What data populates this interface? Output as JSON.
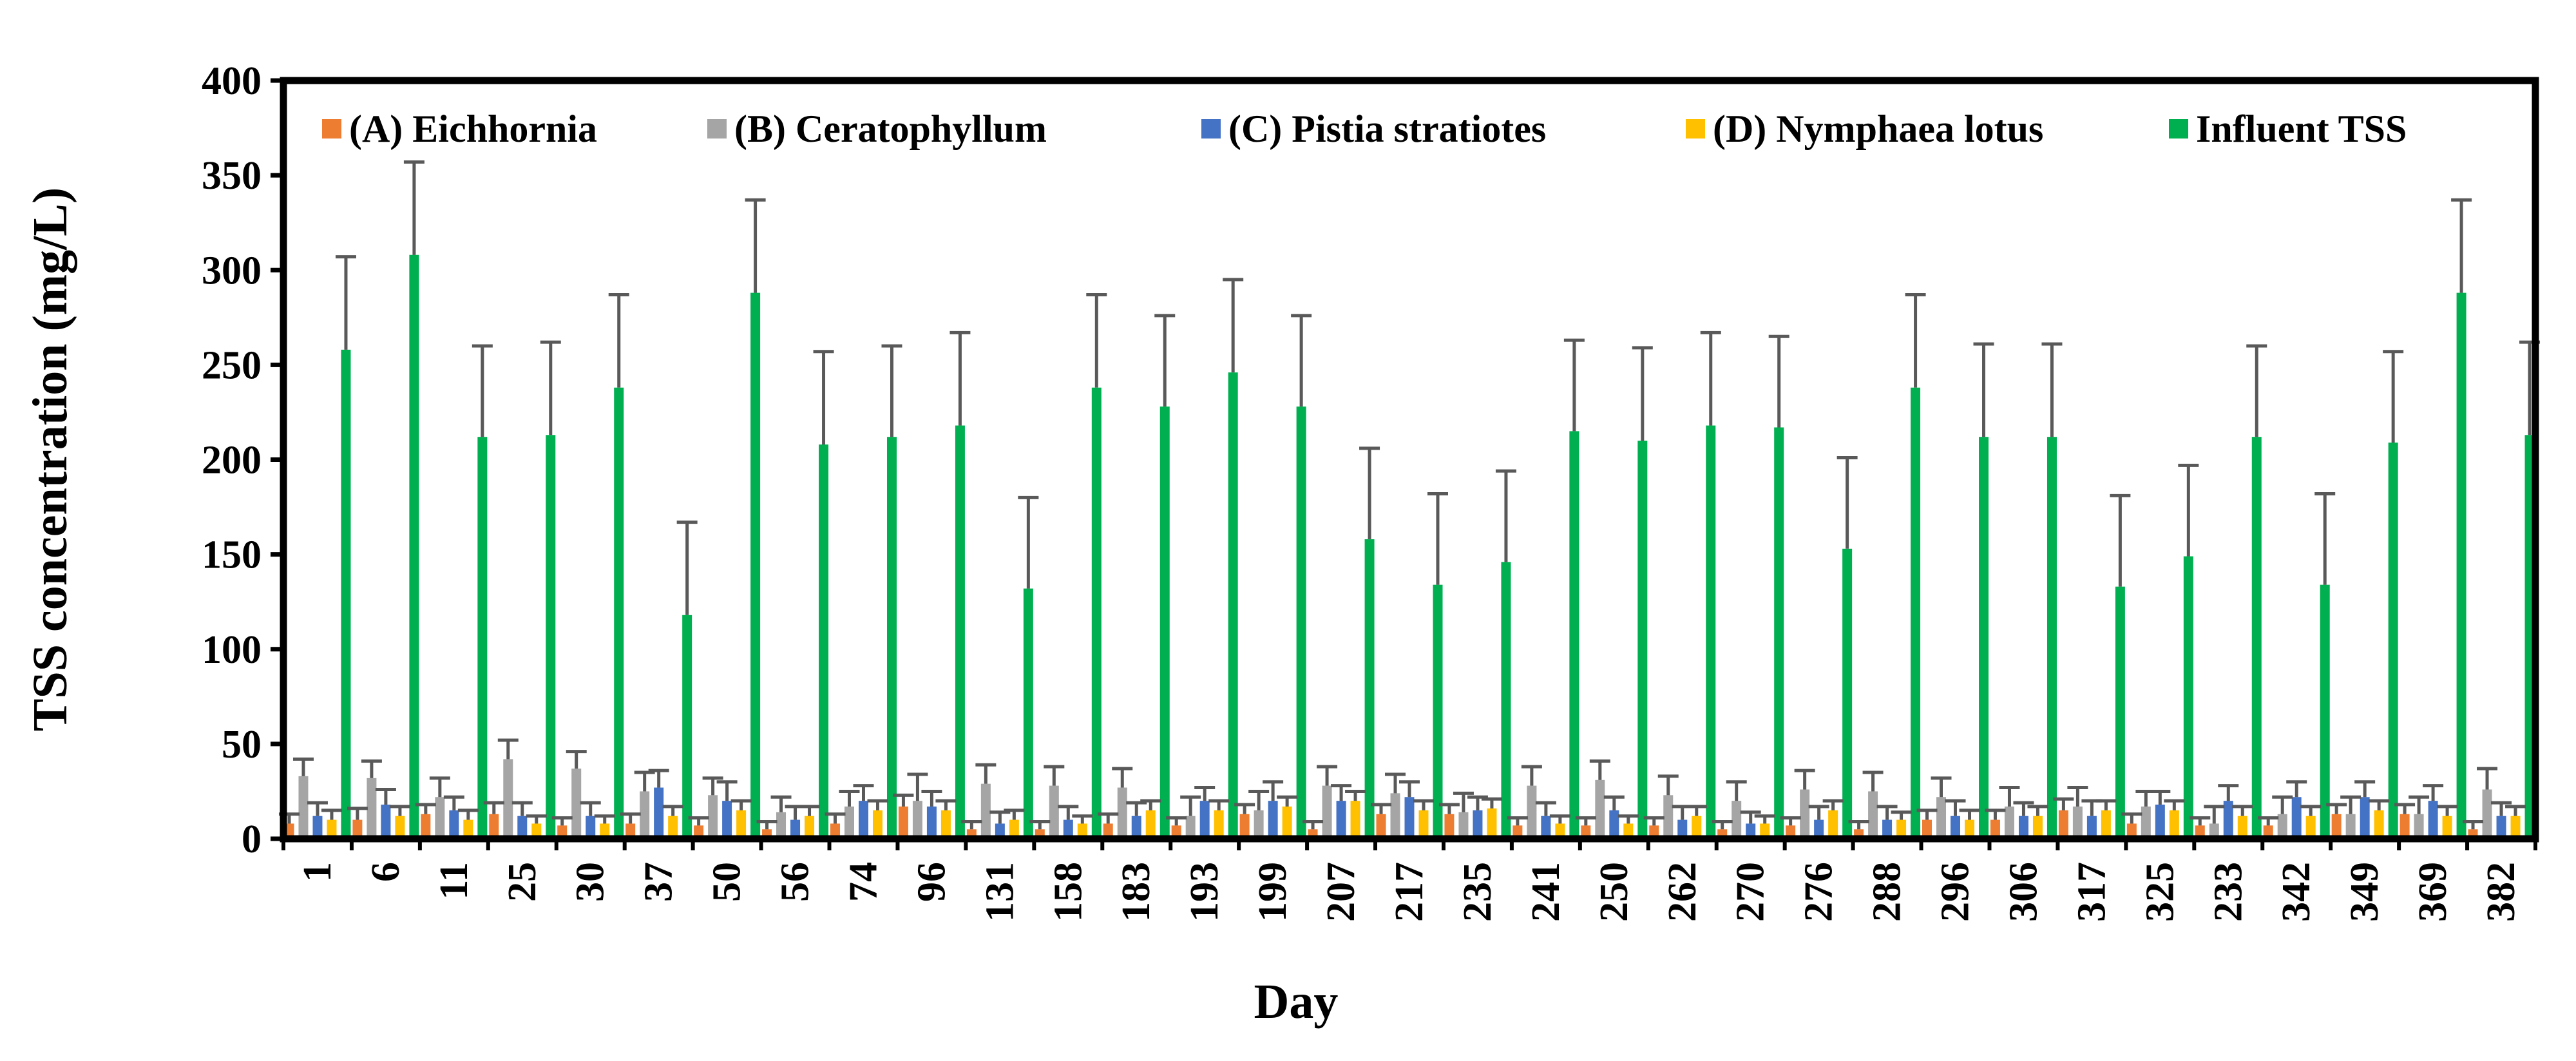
{
  "chart_data": {
    "type": "bar",
    "title": "",
    "xlabel": "Day",
    "ylabel": "TSS concentration (mg/L)",
    "ylim": [
      0,
      400
    ],
    "yticks": [
      0,
      50,
      100,
      150,
      200,
      250,
      300,
      350,
      400
    ],
    "grid": false,
    "legend_position": "top",
    "categories": [
      "1",
      "6",
      "11",
      "25",
      "30",
      "37",
      "50",
      "56",
      "74",
      "96",
      "131",
      "158",
      "183",
      "193",
      "199",
      "207",
      "217",
      "235",
      "241",
      "250",
      "262",
      "270",
      "276",
      "288",
      "296",
      "306",
      "317",
      "325",
      "233",
      "342",
      "349",
      "369",
      "382"
    ],
    "series": [
      {
        "name": "(A) Eichhornia",
        "color": "#ED7D31",
        "values": [
          8,
          10,
          13,
          13,
          7,
          8,
          7,
          5,
          8,
          17,
          5,
          5,
          8,
          7,
          13,
          5,
          13,
          13,
          7,
          7,
          7,
          5,
          7,
          5,
          10,
          10,
          15,
          8,
          7,
          7,
          13,
          13,
          5
        ],
        "errors": [
          5,
          6,
          5,
          6,
          4,
          5,
          4,
          4,
          5,
          6,
          4,
          4,
          5,
          4,
          5,
          4,
          5,
          5,
          4,
          4,
          4,
          4,
          4,
          4,
          5,
          5,
          6,
          5,
          4,
          4,
          5,
          5,
          4
        ]
      },
      {
        "name": "(B) Ceratophyllum",
        "color": "#A5A5A5",
        "values": [
          33,
          32,
          22,
          42,
          37,
          25,
          23,
          14,
          17,
          20,
          29,
          28,
          27,
          12,
          15,
          28,
          24,
          14,
          28,
          31,
          23,
          20,
          26,
          25,
          22,
          17,
          17,
          17,
          8,
          13,
          13,
          13,
          26
        ],
        "errors": [
          9,
          9,
          10,
          10,
          9,
          10,
          9,
          8,
          8,
          14,
          10,
          10,
          10,
          10,
          10,
          10,
          10,
          10,
          10,
          10,
          10,
          10,
          10,
          10,
          10,
          10,
          10,
          8,
          9,
          9,
          9,
          9,
          11
        ]
      },
      {
        "name": "(C) Pistia stratiotes",
        "color": "#4472C4",
        "values": [
          12,
          18,
          15,
          12,
          12,
          27,
          20,
          10,
          20,
          17,
          8,
          10,
          12,
          20,
          20,
          20,
          22,
          15,
          12,
          15,
          10,
          8,
          10,
          10,
          12,
          12,
          12,
          18,
          20,
          22,
          22,
          20,
          12
        ],
        "errors": [
          7,
          8,
          7,
          7,
          7,
          9,
          10,
          7,
          8,
          8,
          6,
          7,
          7,
          7,
          10,
          8,
          8,
          7,
          7,
          7,
          7,
          6,
          7,
          7,
          8,
          7,
          8,
          7,
          8,
          8,
          8,
          8,
          7
        ]
      },
      {
        "name": "(D) Nymphaea lotus",
        "color": "#FFC000",
        "values": [
          10,
          12,
          10,
          8,
          8,
          12,
          15,
          12,
          15,
          15,
          10,
          8,
          15,
          15,
          17,
          20,
          15,
          16,
          8,
          8,
          12,
          8,
          15,
          10,
          10,
          12,
          15,
          15,
          12,
          12,
          15,
          12,
          12
        ],
        "errors": [
          5,
          5,
          5,
          4,
          4,
          5,
          5,
          5,
          5,
          5,
          5,
          4,
          5,
          5,
          5,
          5,
          5,
          5,
          4,
          4,
          5,
          4,
          5,
          4,
          5,
          5,
          5,
          5,
          5,
          5,
          5,
          5,
          5
        ]
      },
      {
        "name": "Influent TSS",
        "color": "#00B050",
        "values": [
          258,
          308,
          212,
          213,
          238,
          118,
          288,
          208,
          212,
          218,
          132,
          238,
          228,
          246,
          228,
          158,
          134,
          146,
          215,
          210,
          218,
          217,
          153,
          238,
          212,
          212,
          133,
          149,
          212,
          134,
          209,
          288,
          213
        ],
        "errors": [
          49,
          49,
          48,
          49,
          49,
          49,
          49,
          49,
          48,
          49,
          48,
          49,
          48,
          49,
          48,
          48,
          48,
          48,
          48,
          49,
          49,
          48,
          48,
          49,
          49,
          49,
          48,
          48,
          48,
          48,
          48,
          49,
          49
        ]
      }
    ]
  }
}
